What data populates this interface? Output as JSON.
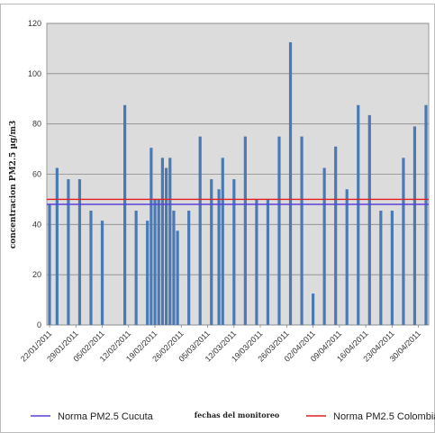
{
  "chart_data": {
    "type": "bar",
    "title": "",
    "xlabel": "fechas del monitoreo",
    "ylabel": "concentracion PM2.5 µg/m3",
    "ylim": [
      0,
      120
    ],
    "yticks": [
      0,
      20,
      40,
      60,
      80,
      100,
      120
    ],
    "grid": true,
    "xtick_labels": [
      "22/01/2011",
      "29/01/2011",
      "05/02/2011",
      "12/02/2011",
      "19/02/2011",
      "26/02/2011",
      "05/03/2011",
      "12/03/2011",
      "19/03/2011",
      "26/03/2011",
      "02/04/2011",
      "09/04/2011",
      "16/04/2011",
      "23/04/2011",
      "30/04/2011"
    ],
    "bar_color": "#4a7ab5",
    "series": [
      {
        "values": [
          {
            "x": "22/01/2011",
            "y": 48
          },
          {
            "x": "24/01/2011",
            "y": 62.5
          },
          {
            "x": "27/01/2011",
            "y": 58
          },
          {
            "x": "30/01/2011",
            "y": 58
          },
          {
            "x": "02/02/2011",
            "y": 45.5
          },
          {
            "x": "05/02/2011",
            "y": 41.5
          },
          {
            "x": "11/02/2011",
            "y": 87.5
          },
          {
            "x": "14/02/2011",
            "y": 45.5
          },
          {
            "x": "17/02/2011",
            "y": 41.5
          },
          {
            "x": "18/02/2011",
            "y": 70.5
          },
          {
            "x": "19/02/2011",
            "y": 50
          },
          {
            "x": "20/02/2011",
            "y": 50
          },
          {
            "x": "21/02/2011",
            "y": 66.5
          },
          {
            "x": "22/02/2011",
            "y": 62.5
          },
          {
            "x": "23/02/2011",
            "y": 66.5
          },
          {
            "x": "24/02/2011",
            "y": 45.5
          },
          {
            "x": "25/02/2011",
            "y": 37.5
          },
          {
            "x": "28/02/2011",
            "y": 45.5
          },
          {
            "x": "03/03/2011",
            "y": 75
          },
          {
            "x": "06/03/2011",
            "y": 58
          },
          {
            "x": "08/03/2011",
            "y": 54
          },
          {
            "x": "09/03/2011",
            "y": 66.5
          },
          {
            "x": "12/03/2011",
            "y": 58
          },
          {
            "x": "15/03/2011",
            "y": 75
          },
          {
            "x": "18/03/2011",
            "y": 50
          },
          {
            "x": "21/03/2011",
            "y": 50
          },
          {
            "x": "24/03/2011",
            "y": 75
          },
          {
            "x": "27/03/2011",
            "y": 112.5
          },
          {
            "x": "30/03/2011",
            "y": 75
          },
          {
            "x": "02/04/2011",
            "y": 12.5
          },
          {
            "x": "05/04/2011",
            "y": 62.5
          },
          {
            "x": "08/04/2011",
            "y": 71
          },
          {
            "x": "11/04/2011",
            "y": 54
          },
          {
            "x": "14/04/2011",
            "y": 87.5
          },
          {
            "x": "17/04/2011",
            "y": 83.5
          },
          {
            "x": "20/04/2011",
            "y": 45.5
          },
          {
            "x": "23/04/2011",
            "y": 45.5
          },
          {
            "x": "26/04/2011",
            "y": 66.5
          },
          {
            "x": "29/04/2011",
            "y": 79
          },
          {
            "x": "02/05/2011",
            "y": 87.5
          }
        ]
      }
    ],
    "reference_lines": [
      {
        "name": "Norma PM2.5 Cucuta",
        "value": 48,
        "color": "#5b3fd9"
      },
      {
        "name": "Norma PM2.5 Colombia",
        "value": 50,
        "color": "#e02020"
      }
    ]
  }
}
